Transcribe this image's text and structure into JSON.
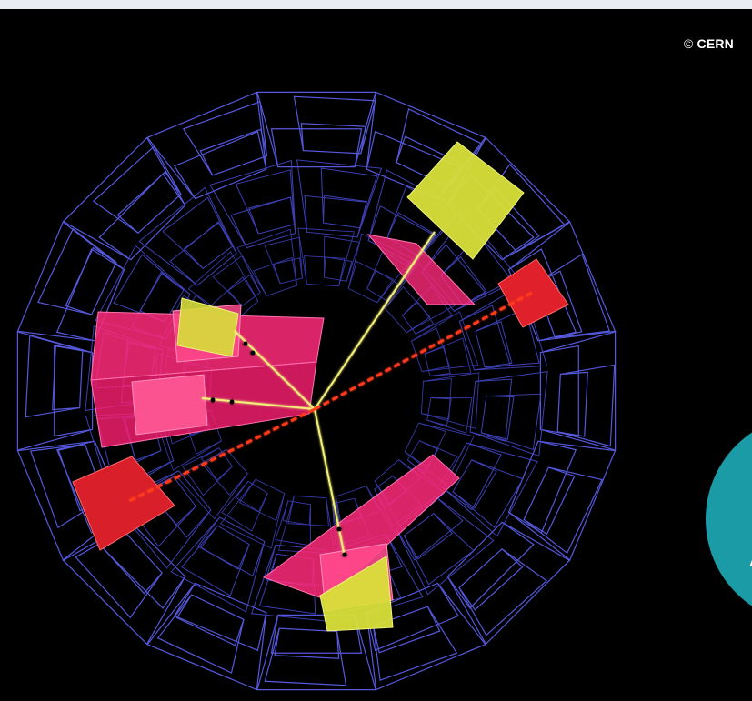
{
  "image": {
    "type": "particle collision event display",
    "credit_symbol": "©",
    "credit_text": "CERN",
    "badge_letter": "A",
    "colors": {
      "background": "#000000",
      "detector_wireframe": "#4a4fd6",
      "calorimeter_deposit": "#ff2a7a",
      "high_energy_cell": "#e0202a",
      "yellow_cell": "#d9e03a",
      "track": "#f2ef7a",
      "dashed_track": "#ff3a1f",
      "badge": "#1b9ba5"
    }
  }
}
